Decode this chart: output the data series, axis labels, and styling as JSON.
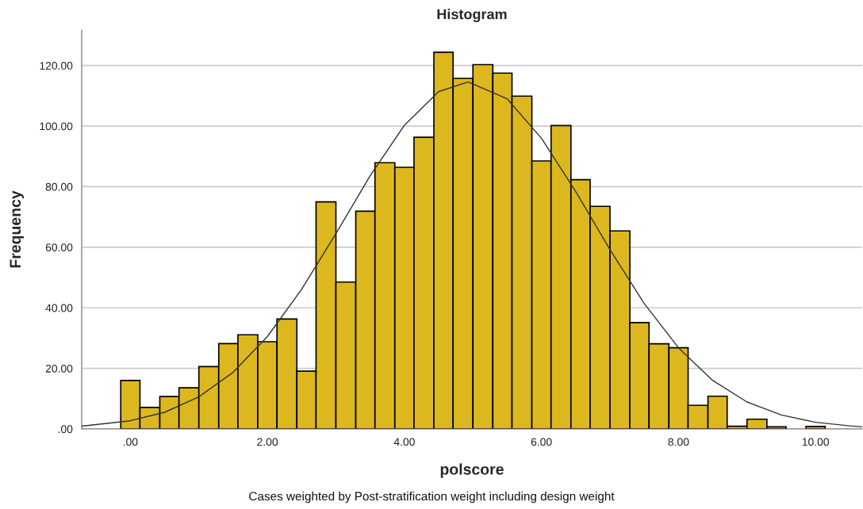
{
  "chart_data": {
    "type": "histogram",
    "title": "Histogram",
    "xlabel": "polscore",
    "ylabel": "Frequency",
    "bins": [
      -0.14,
      0.14,
      0.43,
      0.71,
      1.0,
      1.29,
      1.57,
      1.86,
      2.14,
      2.43,
      2.71,
      3.0,
      3.29,
      3.57,
      3.86,
      4.14,
      4.43,
      4.71,
      5.0,
      5.29,
      5.57,
      5.86,
      6.14,
      6.43,
      6.71,
      7.0,
      7.29,
      7.57,
      7.86,
      8.14,
      8.43,
      8.71,
      9.0,
      9.29,
      9.57,
      9.86,
      10.14
    ],
    "series": [
      {
        "type": "histogram",
        "color": "#dcb81e",
        "values": [
          16.0,
          7.1,
          10.7,
          13.6,
          20.6,
          28.2,
          31.1,
          28.8,
          36.3,
          19.1,
          75.0,
          48.5,
          71.9,
          87.9,
          86.4,
          96.3,
          124.4,
          115.8,
          120.3,
          117.5,
          109.9,
          88.5,
          100.2,
          82.3,
          73.5,
          65.4,
          35.1,
          28.1,
          26.8,
          7.8,
          10.8,
          0.9,
          3.2,
          0.7,
          null,
          0.8
        ]
      },
      {
        "type": "line",
        "color": "#333333",
        "x": [
          -0.71,
          0,
          0.5,
          1,
          1.5,
          2,
          2.5,
          3,
          3.5,
          4,
          4.5,
          4.93,
          5.5,
          6,
          6.5,
          7,
          7.5,
          8,
          8.5,
          9,
          9.5,
          10,
          10.5,
          10.68
        ],
        "values": [
          0.9,
          2.7,
          5.5,
          10.6,
          18.7,
          30.5,
          46.1,
          64.5,
          83.6,
          100.3,
          111.4,
          114.6,
          109.0,
          96.0,
          78.4,
          59.2,
          41.4,
          26.8,
          16.0,
          8.9,
          4.6,
          2.2,
          1.0,
          0.7
        ]
      }
    ],
    "xlim": [
      -0.71,
      10.68
    ],
    "ylim": [
      0,
      131.7
    ],
    "xticks": [
      {
        "value": 0,
        "label": ".00"
      },
      {
        "value": 2,
        "label": "2.00"
      },
      {
        "value": 4,
        "label": "4.00"
      },
      {
        "value": 6,
        "label": "6.00"
      },
      {
        "value": 8,
        "label": "8.00"
      },
      {
        "value": 10,
        "label": "10.00"
      }
    ],
    "yticks": [
      {
        "value": 0,
        "label": ".00"
      },
      {
        "value": 20,
        "label": "20.00"
      },
      {
        "value": 40,
        "label": "40.00"
      },
      {
        "value": 60,
        "label": "60.00"
      },
      {
        "value": 80,
        "label": "80.00"
      },
      {
        "value": 100,
        "label": "100.00"
      },
      {
        "value": 120,
        "label": "120.00"
      }
    ],
    "grid": "y",
    "annotations": [
      "Cases weighted by Post-stratification weight including design weight"
    ]
  }
}
